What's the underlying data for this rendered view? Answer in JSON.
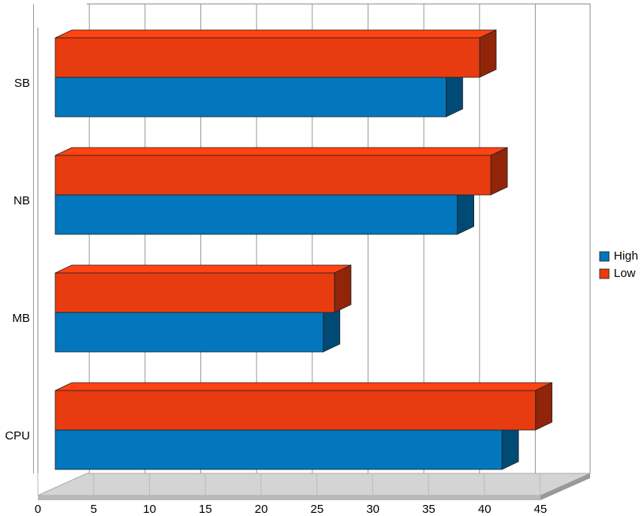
{
  "chart_data": {
    "type": "bar3d_horizontal",
    "categories": [
      "CPU",
      "MB",
      "NB",
      "SB"
    ],
    "series": [
      {
        "name": "High",
        "color": "#0277bd",
        "values": [
          40,
          24,
          36,
          35
        ]
      },
      {
        "name": "Low",
        "color": "#e83c10",
        "values": [
          43,
          25,
          39,
          38
        ]
      }
    ],
    "xlim": [
      0,
      45
    ],
    "xticks": [
      0,
      5,
      10,
      15,
      20,
      25,
      30,
      35,
      40,
      45
    ],
    "grid": true,
    "legend": "right"
  }
}
